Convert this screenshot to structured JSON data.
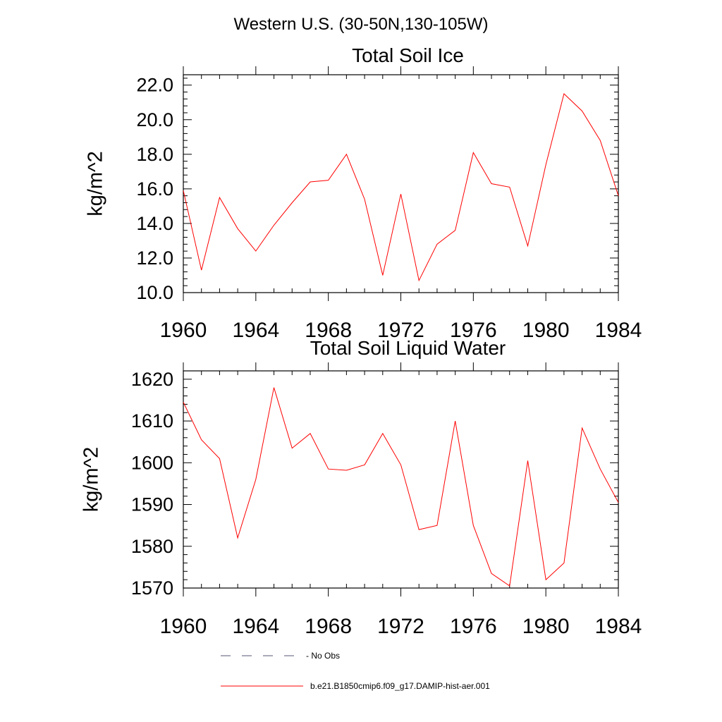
{
  "figure_title": "Western U.S. (30-50N,130-105W)",
  "chart_data": [
    {
      "type": "line",
      "title": "Total Soil Ice",
      "xlabel": "",
      "ylabel": "kg/m^2",
      "xlim": [
        1960,
        1984
      ],
      "ylim": [
        10.0,
        22.6
      ],
      "x_ticks": [
        1960,
        1964,
        1968,
        1972,
        1976,
        1980,
        1984
      ],
      "y_ticks": [
        "10.0",
        "12.0",
        "14.0",
        "16.0",
        "18.0",
        "20.0",
        "22.0"
      ],
      "y_tick_values": [
        10,
        12,
        14,
        16,
        18,
        20,
        22
      ],
      "grid": false,
      "series": [
        {
          "name": "b.e21.B1850cmip6.f09_g17.DAMIP-hist-aer.001",
          "color": "#ff0000",
          "x": [
            1960,
            1961,
            1962,
            1963,
            1964,
            1965,
            1966,
            1967,
            1968,
            1969,
            1970,
            1971,
            1972,
            1973,
            1974,
            1975,
            1976,
            1977,
            1978,
            1979,
            1980,
            1981,
            1982,
            1983,
            1984
          ],
          "values": [
            15.9,
            11.3,
            15.5,
            13.7,
            12.4,
            13.9,
            15.2,
            16.4,
            16.5,
            18.0,
            15.4,
            11.0,
            15.7,
            10.7,
            12.8,
            13.6,
            18.1,
            16.3,
            16.1,
            12.7,
            17.4,
            21.5,
            20.5,
            18.8,
            15.6
          ]
        }
      ]
    },
    {
      "type": "line",
      "title": "Total Soil Liquid Water",
      "xlabel": "",
      "ylabel": "kg/m^2",
      "xlim": [
        1960,
        1984
      ],
      "ylim": [
        1570,
        1622
      ],
      "x_ticks": [
        1960,
        1964,
        1968,
        1972,
        1976,
        1980,
        1984
      ],
      "y_ticks": [
        "1570",
        "1580",
        "1590",
        "1600",
        "1610",
        "1620"
      ],
      "y_tick_values": [
        1570,
        1580,
        1590,
        1600,
        1610,
        1620
      ],
      "grid": false,
      "series": [
        {
          "name": "b.e21.B1850cmip6.f09_g17.DAMIP-hist-aer.001",
          "color": "#ff0000",
          "x": [
            1960,
            1961,
            1962,
            1963,
            1964,
            1965,
            1966,
            1967,
            1968,
            1969,
            1970,
            1971,
            1972,
            1973,
            1974,
            1975,
            1976,
            1977,
            1978,
            1979,
            1980,
            1981,
            1982,
            1983,
            1984
          ],
          "values": [
            1614.5,
            1605.5,
            1601.0,
            1582.0,
            1596.0,
            1618.0,
            1603.5,
            1607.0,
            1598.5,
            1598.2,
            1599.5,
            1607.0,
            1599.5,
            1584.0,
            1585.0,
            1610.0,
            1585.0,
            1573.5,
            1570.5,
            1600.5,
            1572.0,
            1576.0,
            1608.3,
            1598.5,
            1590.5
          ]
        }
      ]
    }
  ],
  "legend": {
    "placement": "bottom",
    "items": [
      {
        "label": "No Obs",
        "style": "dashed",
        "color": "#555577"
      },
      {
        "label": "b.e21.B1850cmip6.f09_g17.DAMIP-hist-aer.001",
        "style": "solid",
        "color": "#ff0000"
      }
    ]
  }
}
